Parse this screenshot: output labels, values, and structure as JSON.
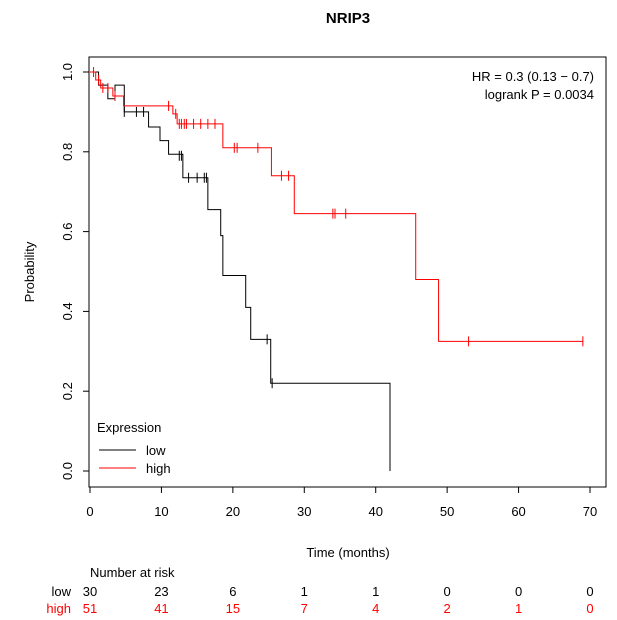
{
  "chart_data": {
    "type": "line",
    "subtype": "kaplan-meier",
    "title": "NRIP3",
    "xlabel": "Time (months)",
    "ylabel": "Probability",
    "xlim": [
      0,
      70
    ],
    "ylim": [
      0,
      1
    ],
    "xticks": [
      "0",
      "10",
      "20",
      "30",
      "40",
      "50",
      "60",
      "70"
    ],
    "yticks": [
      "0.0",
      "0.2",
      "0.4",
      "0.6",
      "0.8",
      "1.0"
    ],
    "annotations": [
      "HR = 0.3 (0.13 − 0.7)",
      "logrank P = 0.0034"
    ],
    "legend": {
      "title": "Expression",
      "position": "bottom-left"
    },
    "series": [
      {
        "name": "low",
        "color": "#000000",
        "steps": [
          [
            0,
            1.0
          ],
          [
            1.2,
            0.967
          ],
          [
            2.5,
            0.933
          ],
          [
            3.5,
            0.967
          ],
          [
            4.8,
            0.9
          ],
          [
            7.5,
            0.9
          ],
          [
            8.2,
            0.862
          ],
          [
            9.8,
            0.828
          ],
          [
            11,
            0.794
          ],
          [
            12.5,
            0.794
          ],
          [
            13,
            0.735
          ],
          [
            16.2,
            0.735
          ],
          [
            16.5,
            0.655
          ],
          [
            18.3,
            0.59
          ],
          [
            18.6,
            0.49
          ],
          [
            21.7,
            0.49
          ],
          [
            21.8,
            0.41
          ],
          [
            22.5,
            0.33
          ],
          [
            23.8,
            0.33
          ],
          [
            24,
            0.33
          ],
          [
            25.3,
            0.22
          ],
          [
            42,
            0.22
          ],
          [
            42,
            0.0
          ]
        ],
        "censored": [
          [
            4.8,
            0.9
          ],
          [
            6.5,
            0.9
          ],
          [
            7.5,
            0.9
          ],
          [
            12.5,
            0.79
          ],
          [
            12.8,
            0.79
          ],
          [
            13.8,
            0.735
          ],
          [
            15,
            0.735
          ],
          [
            16,
            0.735
          ],
          [
            16.3,
            0.735
          ],
          [
            24.8,
            0.33
          ],
          [
            25.5,
            0.22
          ]
        ]
      },
      {
        "name": "high",
        "color": "#ff0000",
        "steps": [
          [
            0,
            1.0
          ],
          [
            0.8,
            0.98
          ],
          [
            1.5,
            0.96
          ],
          [
            3.2,
            0.94
          ],
          [
            4.7,
            0.915
          ],
          [
            11.3,
            0.915
          ],
          [
            11.6,
            0.895
          ],
          [
            12.2,
            0.87
          ],
          [
            18.3,
            0.87
          ],
          [
            18.6,
            0.81
          ],
          [
            25.2,
            0.81
          ],
          [
            25.4,
            0.74
          ],
          [
            28.5,
            0.74
          ],
          [
            28.6,
            0.645
          ],
          [
            45.4,
            0.645
          ],
          [
            45.6,
            0.48
          ],
          [
            48.6,
            0.48
          ],
          [
            48.8,
            0.325
          ],
          [
            69,
            0.325
          ]
        ],
        "censored": [
          [
            0.5,
            1.0
          ],
          [
            1.2,
            0.98
          ],
          [
            1.8,
            0.96
          ],
          [
            2.5,
            0.96
          ],
          [
            3.5,
            0.94
          ],
          [
            11,
            0.915
          ],
          [
            12,
            0.895
          ],
          [
            12.5,
            0.87
          ],
          [
            12.8,
            0.87
          ],
          [
            13.2,
            0.87
          ],
          [
            13.5,
            0.87
          ],
          [
            14.5,
            0.87
          ],
          [
            15.5,
            0.87
          ],
          [
            16.5,
            0.87
          ],
          [
            17.5,
            0.87
          ],
          [
            20.2,
            0.81
          ],
          [
            20.6,
            0.81
          ],
          [
            23.5,
            0.81
          ],
          [
            26.8,
            0.74
          ],
          [
            27.8,
            0.74
          ],
          [
            34,
            0.645
          ],
          [
            34.3,
            0.645
          ],
          [
            35.8,
            0.645
          ],
          [
            53,
            0.325
          ],
          [
            69,
            0.325
          ]
        ]
      }
    ],
    "risk_table": {
      "title": "Number at risk",
      "times": [
        0,
        10,
        20,
        30,
        40,
        50,
        60,
        70
      ],
      "rows": [
        {
          "label": "low",
          "color": "#000000",
          "counts": [
            "30",
            "23",
            "6",
            "1",
            "1",
            "0",
            "0",
            "0"
          ]
        },
        {
          "label": "high",
          "color": "#ff0000",
          "counts": [
            "51",
            "41",
            "15",
            "7",
            "4",
            "2",
            "1",
            "0"
          ]
        }
      ]
    }
  }
}
